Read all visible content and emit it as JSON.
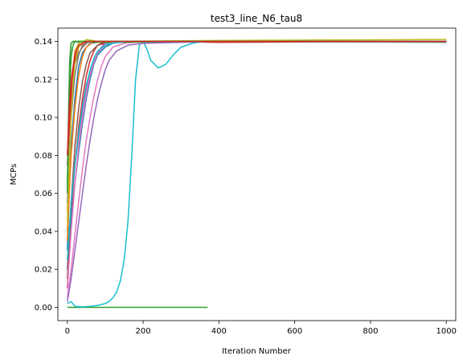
{
  "chart_data": {
    "type": "line",
    "title": "test3_line_N6_tau8",
    "xlabel": "Iteration Number",
    "ylabel": "MCPs",
    "xlim": [
      -25,
      1025
    ],
    "ylim": [
      -0.007,
      0.147
    ],
    "xticks": [
      0,
      200,
      400,
      600,
      800,
      1000
    ],
    "xtick_labels": [
      "0",
      "200",
      "400",
      "600",
      "800",
      "1000"
    ],
    "yticks": [
      0.0,
      0.02,
      0.04,
      0.06,
      0.08,
      0.1,
      0.12,
      0.14
    ],
    "ytick_labels": [
      "0.00",
      "0.02",
      "0.04",
      "0.06",
      "0.08",
      "0.10",
      "0.12",
      "0.14"
    ],
    "grid": false,
    "legend": "none",
    "series": [
      {
        "color": "#1f77b4",
        "x": [
          0,
          5,
          10,
          20,
          30,
          40,
          50,
          60,
          80,
          100,
          150,
          200,
          400,
          1000
        ],
        "y": [
          0.03,
          0.06,
          0.085,
          0.11,
          0.127,
          0.134,
          0.137,
          0.139,
          0.1395,
          0.14,
          0.14,
          0.14,
          0.14,
          0.14
        ]
      },
      {
        "color": "#ff7f0e",
        "x": [
          0,
          5,
          10,
          15,
          20,
          30,
          40,
          50,
          80,
          150,
          400,
          1000
        ],
        "y": [
          0.05,
          0.08,
          0.105,
          0.125,
          0.135,
          0.139,
          0.14,
          0.14,
          0.1395,
          0.14,
          0.14,
          0.14
        ]
      },
      {
        "color": "#2ca02c",
        "x": [
          0,
          100,
          200,
          300,
          370
        ],
        "y": [
          0,
          0,
          0,
          0,
          0
        ]
      },
      {
        "color": "#d62728",
        "x": [
          0,
          5,
          10,
          20,
          30,
          40,
          50,
          60,
          70,
          80,
          100,
          150,
          200,
          400,
          1000
        ],
        "y": [
          0.01,
          0.03,
          0.05,
          0.075,
          0.095,
          0.11,
          0.122,
          0.13,
          0.135,
          0.138,
          0.139,
          0.14,
          0.14,
          0.1395,
          0.14
        ]
      },
      {
        "color": "#9467bd",
        "x": [
          0,
          5,
          10,
          20,
          30,
          40,
          50,
          60,
          70,
          80,
          90,
          100,
          150,
          400,
          1000
        ],
        "y": [
          0.02,
          0.04,
          0.055,
          0.075,
          0.09,
          0.104,
          0.115,
          0.124,
          0.13,
          0.134,
          0.137,
          0.139,
          0.14,
          0.14,
          0.14
        ]
      },
      {
        "color": "#8c564b",
        "x": [
          0,
          5,
          10,
          20,
          30,
          40,
          50,
          60,
          80,
          100,
          150,
          400,
          1000
        ],
        "y": [
          0.08,
          0.1,
          0.115,
          0.128,
          0.134,
          0.137,
          0.139,
          0.14,
          0.14,
          0.1395,
          0.14,
          0.14,
          0.14
        ]
      },
      {
        "color": "#e377c2",
        "x": [
          0,
          10,
          20,
          30,
          40,
          50,
          60,
          70,
          80,
          90,
          100,
          120,
          150,
          200,
          400,
          1000
        ],
        "y": [
          0.005,
          0.02,
          0.038,
          0.056,
          0.073,
          0.088,
          0.1,
          0.111,
          0.12,
          0.127,
          0.132,
          0.137,
          0.139,
          0.14,
          0.14,
          0.14
        ]
      },
      {
        "color": "#7f7f7f",
        "x": [
          0,
          3,
          6,
          10,
          15,
          20,
          30,
          50,
          100,
          400,
          1000
        ],
        "y": [
          0.06,
          0.1,
          0.13,
          0.139,
          0.14,
          0.14,
          0.1395,
          0.14,
          0.14,
          0.14,
          0.1395
        ]
      },
      {
        "color": "#bcbd22",
        "x": [
          0,
          5,
          10,
          15,
          20,
          25,
          30,
          40,
          60,
          100,
          400,
          1000
        ],
        "y": [
          0.04,
          0.07,
          0.1,
          0.12,
          0.132,
          0.137,
          0.139,
          0.14,
          0.14,
          0.14,
          0.14,
          0.14
        ]
      },
      {
        "color": "#17becf",
        "x": [
          0,
          10,
          20,
          40,
          60,
          80,
          100,
          110,
          120,
          130,
          140,
          150,
          160,
          170,
          180,
          190,
          200,
          210,
          220,
          240,
          260,
          280,
          300,
          330,
          360,
          400,
          500,
          700,
          1000
        ],
        "y": [
          0.002,
          0.003,
          0.0005,
          0.0002,
          0.0005,
          0.001,
          0.002,
          0.003,
          0.005,
          0.008,
          0.014,
          0.025,
          0.045,
          0.08,
          0.12,
          0.138,
          0.14,
          0.136,
          0.13,
          0.126,
          0.128,
          0.133,
          0.137,
          0.139,
          0.14,
          0.14,
          0.14,
          0.14,
          0.14
        ]
      },
      {
        "color": "#1f77b4",
        "x": [
          0,
          10,
          20,
          30,
          40,
          50,
          60,
          70,
          80,
          100,
          120,
          150,
          200,
          400,
          1000
        ],
        "y": [
          0.025,
          0.045,
          0.065,
          0.082,
          0.097,
          0.11,
          0.12,
          0.128,
          0.133,
          0.137,
          0.139,
          0.14,
          0.14,
          0.14,
          0.14
        ]
      },
      {
        "color": "#ff7f0e",
        "x": [
          0,
          5,
          10,
          20,
          30,
          40,
          50,
          70,
          100,
          400,
          1000
        ],
        "y": [
          0.035,
          0.06,
          0.08,
          0.105,
          0.122,
          0.132,
          0.137,
          0.14,
          0.14,
          0.14,
          0.14
        ]
      },
      {
        "color": "#2ca02c",
        "x": [
          0,
          3,
          6,
          10,
          15,
          20,
          40,
          100,
          400,
          1000
        ],
        "y": [
          0.065,
          0.09,
          0.115,
          0.132,
          0.138,
          0.14,
          0.14,
          0.1395,
          0.14,
          0.14
        ]
      },
      {
        "color": "#d62728",
        "x": [
          0,
          5,
          10,
          15,
          20,
          30,
          40,
          60,
          100,
          400,
          1000
        ],
        "y": [
          0.075,
          0.095,
          0.11,
          0.122,
          0.13,
          0.137,
          0.139,
          0.14,
          0.14,
          0.14,
          0.14
        ]
      },
      {
        "color": "#9467bd",
        "x": [
          0,
          10,
          20,
          30,
          40,
          50,
          60,
          70,
          80,
          90,
          100,
          110,
          130,
          160,
          200,
          400,
          1000
        ],
        "y": [
          0.003,
          0.015,
          0.03,
          0.045,
          0.06,
          0.075,
          0.088,
          0.1,
          0.11,
          0.118,
          0.125,
          0.13,
          0.135,
          0.138,
          0.139,
          0.14,
          0.14
        ]
      },
      {
        "color": "#8c564b",
        "x": [
          0,
          5,
          10,
          20,
          30,
          40,
          50,
          60,
          80,
          100,
          400,
          1000
        ],
        "y": [
          0.015,
          0.035,
          0.055,
          0.085,
          0.105,
          0.119,
          0.128,
          0.134,
          0.138,
          0.14,
          0.14,
          0.14
        ]
      },
      {
        "color": "#e377c2",
        "x": [
          0,
          5,
          10,
          20,
          30,
          40,
          50,
          60,
          70,
          80,
          100,
          130,
          400,
          1000
        ],
        "y": [
          0.01,
          0.025,
          0.04,
          0.065,
          0.085,
          0.1,
          0.112,
          0.122,
          0.129,
          0.134,
          0.138,
          0.14,
          0.14,
          0.14
        ]
      },
      {
        "color": "#7f7f7f",
        "x": [
          0,
          5,
          10,
          20,
          30,
          40,
          60,
          100,
          400,
          1000
        ],
        "y": [
          0.055,
          0.08,
          0.1,
          0.122,
          0.133,
          0.138,
          0.14,
          0.14,
          0.14,
          0.14
        ]
      },
      {
        "color": "#bcbd22",
        "x": [
          0,
          5,
          10,
          15,
          20,
          30,
          40,
          50,
          80,
          100,
          400,
          1000
        ],
        "y": [
          0.045,
          0.075,
          0.1,
          0.118,
          0.128,
          0.137,
          0.1395,
          0.141,
          0.14,
          0.14,
          0.1405,
          0.141
        ]
      },
      {
        "color": "#17becf",
        "x": [
          0,
          5,
          10,
          20,
          30,
          40,
          50,
          60,
          70,
          80,
          100,
          120,
          160,
          400,
          1000
        ],
        "y": [
          0.025,
          0.04,
          0.055,
          0.075,
          0.092,
          0.106,
          0.117,
          0.125,
          0.131,
          0.135,
          0.138,
          0.139,
          0.14,
          0.14,
          0.14
        ]
      },
      {
        "color": "#2ca02c",
        "x": [
          0,
          2,
          4,
          6,
          8,
          10,
          15,
          20,
          50,
          400,
          1000
        ],
        "y": [
          0.06,
          0.09,
          0.11,
          0.125,
          0.134,
          0.139,
          0.14,
          0.14,
          0.14,
          0.14,
          0.14
        ]
      },
      {
        "color": "#d62728",
        "x": [
          0,
          3,
          6,
          10,
          20,
          30,
          50,
          100,
          400,
          1000
        ],
        "y": [
          0.08,
          0.095,
          0.108,
          0.12,
          0.133,
          0.138,
          0.14,
          0.14,
          0.14,
          0.14
        ]
      }
    ]
  }
}
